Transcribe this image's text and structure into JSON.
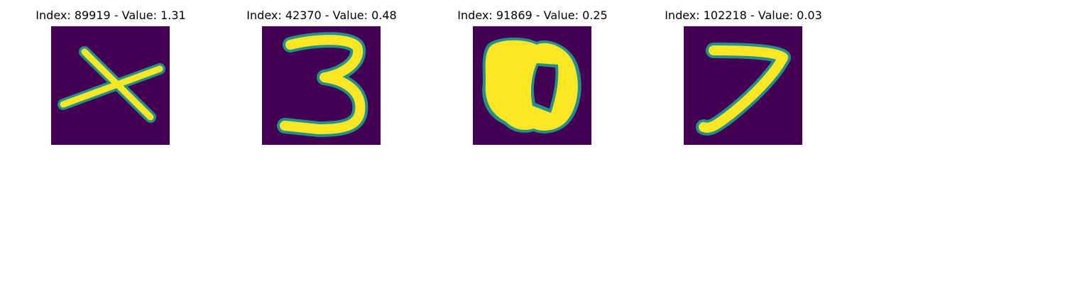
{
  "palette": {
    "background": "#440154",
    "stroke": "#fde725",
    "edge": "#21918c"
  },
  "samples": [
    {
      "title": "Index: 89919 - Value: 1.31",
      "digit": "x"
    },
    {
      "title": "Index: 42370 - Value: 0.48",
      "digit": "3"
    },
    {
      "title": "Index: 91869 - Value: 0.25",
      "digit": "0"
    },
    {
      "title": "Index: 102218 - Value: 0.03",
      "digit": "7"
    }
  ]
}
